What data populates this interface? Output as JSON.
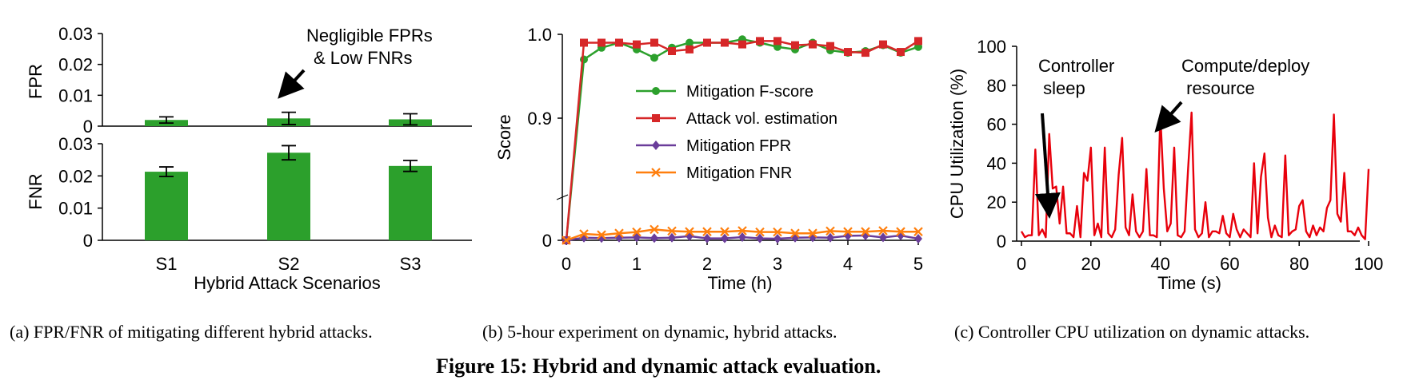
{
  "chart_data": [
    {
      "id": "a-top",
      "type": "bar",
      "categories": [
        "S1",
        "S2",
        "S3"
      ],
      "values": [
        0.002,
        0.0025,
        0.0022
      ],
      "errors": [
        0.001,
        0.002,
        0.0018
      ],
      "ylabel": "FPR",
      "ylim": [
        0,
        0.03
      ],
      "yticks": [
        "0",
        "0.01",
        "0.02",
        "0.03"
      ],
      "annotation": [
        "Negligible FPRs",
        "& Low FNRs"
      ],
      "color": "#2ca02c"
    },
    {
      "id": "a-bottom",
      "type": "bar",
      "categories": [
        "S1",
        "S2",
        "S3"
      ],
      "values": [
        0.0213,
        0.0272,
        0.0231
      ],
      "errors": [
        0.0015,
        0.0022,
        0.0017
      ],
      "ylabel": "FNR",
      "xlabel": "Hybrid Attack Scenarios",
      "ylim": [
        0,
        0.03
      ],
      "yticks": [
        "0",
        "0.01",
        "0.02",
        "0.03"
      ],
      "color": "#2ca02c"
    },
    {
      "id": "b",
      "type": "line",
      "xlabel": "Time (h)",
      "ylabel": "Score",
      "xlim": [
        0,
        5
      ],
      "ylim": [
        0,
        1.0
      ],
      "xticks": [
        "0",
        "1",
        "2",
        "3",
        "4",
        "5"
      ],
      "yticks": [
        "0",
        "0.9",
        "1.0"
      ],
      "x": [
        0,
        0.25,
        0.5,
        0.75,
        1.0,
        1.25,
        1.5,
        1.75,
        2.0,
        2.25,
        2.5,
        2.75,
        3.0,
        3.25,
        3.5,
        3.75,
        4.0,
        4.25,
        4.5,
        4.75,
        5.0
      ],
      "series": [
        {
          "name": "Mitigation F-score",
          "color": "#2ca02c",
          "marker": "circle",
          "values": [
            0,
            0.97,
            0.984,
            0.99,
            0.982,
            0.972,
            0.984,
            0.99,
            0.99,
            0.99,
            0.994,
            0.99,
            0.985,
            0.982,
            0.99,
            0.981,
            0.978,
            0.98,
            0.987,
            0.978,
            0.985
          ]
        },
        {
          "name": "Attack vol. estimation",
          "color": "#d62728",
          "marker": "square",
          "values": [
            0,
            0.99,
            0.99,
            0.99,
            0.988,
            0.99,
            0.98,
            0.982,
            0.99,
            0.99,
            0.988,
            0.992,
            0.992,
            0.987,
            0.988,
            0.986,
            0.979,
            0.978,
            0.988,
            0.979,
            0.992
          ]
        },
        {
          "name": "Mitigation FPR",
          "color": "#6a3d9a",
          "marker": "diamond",
          "values": [
            0,
            0.008,
            0.007,
            0.008,
            0.009,
            0.007,
            0.008,
            0.013,
            0.006,
            0.006,
            0.01,
            0.006,
            0.005,
            0.008,
            0.009,
            0.008,
            0.014,
            0.015,
            0.009,
            0.015,
            0.005
          ]
        },
        {
          "name": "Mitigation FNR",
          "color": "#ff7f0e",
          "marker": "x",
          "values": [
            0,
            0.02,
            0.017,
            0.022,
            0.026,
            0.034,
            0.029,
            0.027,
            0.027,
            0.027,
            0.03,
            0.026,
            0.026,
            0.022,
            0.022,
            0.029,
            0.027,
            0.027,
            0.03,
            0.027,
            0.027
          ]
        }
      ]
    },
    {
      "id": "c",
      "type": "line",
      "xlabel": "Time (s)",
      "ylabel": "CPU Utilization (%)",
      "xlim": [
        0,
        100
      ],
      "ylim": [
        0,
        100
      ],
      "xticks": [
        "0",
        "20",
        "40",
        "60",
        "80",
        "100"
      ],
      "yticks": [
        "0",
        "20",
        "40",
        "60",
        "80",
        "100"
      ],
      "color": "#e8000b",
      "annotations": [
        [
          "Controller",
          " sleep"
        ],
        [
          "Compute/deploy",
          " resource"
        ]
      ],
      "x": [
        0,
        1,
        2,
        3,
        4,
        5,
        6,
        7,
        8,
        9,
        10,
        11,
        12,
        13,
        14,
        15,
        16,
        17,
        18,
        19,
        20,
        21,
        22,
        23,
        24,
        25,
        26,
        27,
        28,
        29,
        30,
        31,
        32,
        33,
        34,
        35,
        36,
        37,
        38,
        39,
        40,
        41,
        42,
        43,
        44,
        45,
        46,
        47,
        48,
        49,
        50,
        51,
        52,
        53,
        54,
        55,
        56,
        57,
        58,
        59,
        60,
        61,
        62,
        63,
        64,
        65,
        66,
        67,
        68,
        69,
        70,
        71,
        72,
        73,
        74,
        75,
        76,
        77,
        78,
        79,
        80,
        81,
        82,
        83,
        84,
        85,
        86,
        87,
        88,
        89,
        90,
        91,
        92,
        93,
        94,
        95,
        96,
        97,
        98,
        99,
        100
      ],
      "y": [
        5,
        2,
        3,
        3,
        47,
        3,
        6,
        2,
        55,
        27,
        28,
        9,
        28,
        4,
        4,
        2,
        18,
        2,
        35,
        31,
        48,
        3,
        9,
        2,
        48,
        4,
        2,
        6,
        34,
        53,
        7,
        3,
        24,
        5,
        2,
        5,
        37,
        3,
        3,
        2,
        65,
        27,
        5,
        9,
        48,
        3,
        2,
        5,
        37,
        66,
        6,
        2,
        4,
        20,
        2,
        5,
        5,
        4,
        13,
        4,
        2,
        14,
        6,
        2,
        6,
        4,
        2,
        40,
        4,
        33,
        45,
        12,
        2,
        8,
        3,
        2,
        44,
        3,
        5,
        6,
        18,
        21,
        5,
        2,
        8,
        3,
        7,
        5,
        17,
        21,
        65,
        14,
        10,
        35,
        5,
        5,
        3,
        7,
        3,
        1,
        37
      ]
    }
  ],
  "captions": {
    "a": "(a)  FPR/FNR of mitigating different hybrid attacks.",
    "b": "(b)  5-hour experiment on dynamic, hybrid attacks.",
    "c": "(c)  Controller CPU utilization on dynamic attacks.",
    "figure": "Figure 15: Hybrid and dynamic attack evaluation."
  }
}
